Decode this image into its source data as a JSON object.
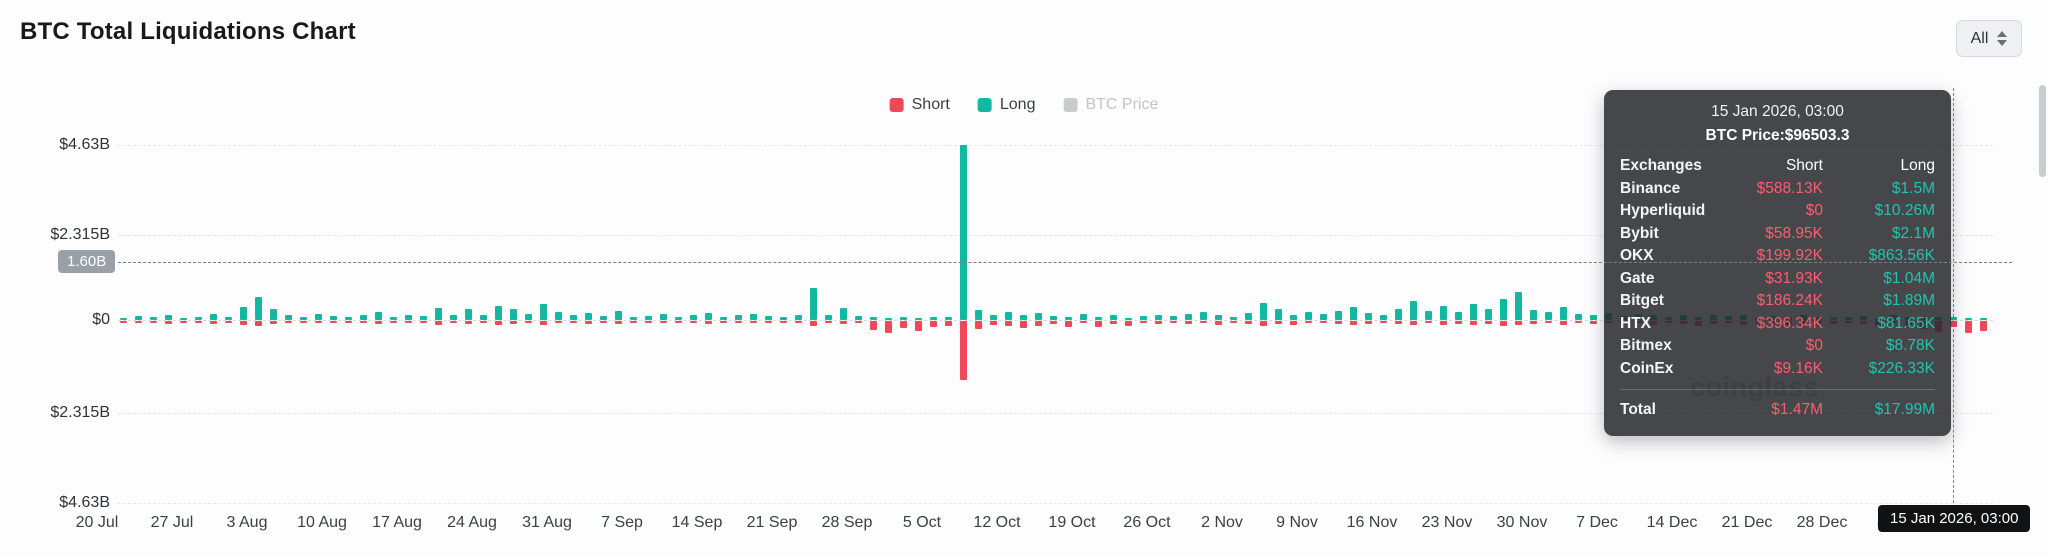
{
  "header": {
    "title": "BTC Total Liquidations Chart",
    "range_selector": "All"
  },
  "legend": [
    {
      "label": "Short",
      "color": "#ef4856",
      "active": true
    },
    {
      "label": "Long",
      "color": "#13b8a3",
      "active": true
    },
    {
      "label": "BTC Price",
      "color": "#c9cccf",
      "active": false
    }
  ],
  "y_axis": {
    "labels": [
      "$4.63B",
      "$2.315B",
      "$0",
      "$2.315B",
      "$4.63B"
    ],
    "hover_badge": "1.60B"
  },
  "x_axis": {
    "hover_badge": "15 Jan 2026, 03:00"
  },
  "watermark": "coinglass",
  "tooltip": {
    "date": "15 Jan 2026, 03:00",
    "btc_price": "BTC Price:$96503.3",
    "columns": [
      "Exchanges",
      "Short",
      "Long"
    ],
    "rows": [
      {
        "name": "Binance",
        "short": "$588.13K",
        "long": "$1.5M"
      },
      {
        "name": "Hyperliquid",
        "short": "$0",
        "long": "$10.26M"
      },
      {
        "name": "Bybit",
        "short": "$58.95K",
        "long": "$2.1M"
      },
      {
        "name": "OKX",
        "short": "$199.92K",
        "long": "$863.56K"
      },
      {
        "name": "Gate",
        "short": "$31.93K",
        "long": "$1.04M"
      },
      {
        "name": "Bitget",
        "short": "$186.24K",
        "long": "$1.89M"
      },
      {
        "name": "HTX",
        "short": "$396.34K",
        "long": "$81.65K"
      },
      {
        "name": "Bitmex",
        "short": "$0",
        "long": "$8.78K"
      },
      {
        "name": "CoinEx",
        "short": "$9.16K",
        "long": "$226.33K"
      }
    ],
    "total": {
      "name": "Total",
      "short": "$1.47M",
      "long": "$17.99M"
    },
    "colors": {
      "short_text": "#ff5d6e",
      "long_text": "#22c4ad"
    }
  },
  "chart_data": {
    "type": "bar",
    "title": "BTC Total Liquidations Chart",
    "xlabel": "Date",
    "ylabel": "Liquidations (USD, billions; Long up / Short down)",
    "ylim": [
      -4.63,
      4.63
    ],
    "y_tick_values_billions": [
      4.63,
      2.315,
      0,
      -2.315,
      -4.63
    ],
    "x_tick_labels": [
      "20 Jul",
      "27 Jul",
      "3 Aug",
      "10 Aug",
      "17 Aug",
      "24 Aug",
      "31 Aug",
      "7 Sep",
      "14 Sep",
      "21 Sep",
      "28 Sep",
      "5 Oct",
      "12 Oct",
      "19 Oct",
      "26 Oct",
      "2 Nov",
      "9 Nov",
      "16 Nov",
      "23 Nov",
      "30 Nov",
      "7 Dec",
      "14 Dec",
      "21 Dec",
      "28 Dec",
      "4 Jan"
    ],
    "legend_position": "top-center",
    "grid": "horizontal-dashed",
    "crosshair": {
      "x_label": "15 Jan 2026, 03:00",
      "y_label": "1.60B"
    },
    "hovered_point": {
      "date": "15 Jan 2026, 03:00",
      "btc_price": 96503.3,
      "short_total": "$1.47M",
      "long_total": "$17.99M"
    },
    "series": [
      {
        "name": "Long",
        "color": "#13b8a3",
        "direction": "up",
        "values_billions": [
          0.06,
          0.11,
          0.07,
          0.13,
          0.05,
          0.09,
          0.16,
          0.08,
          0.35,
          0.6,
          0.3,
          0.12,
          0.08,
          0.15,
          0.1,
          0.07,
          0.12,
          0.2,
          0.08,
          0.14,
          0.1,
          0.32,
          0.14,
          0.28,
          0.12,
          0.38,
          0.3,
          0.16,
          0.42,
          0.22,
          0.12,
          0.18,
          0.1,
          0.24,
          0.08,
          0.1,
          0.16,
          0.08,
          0.13,
          0.18,
          0.08,
          0.12,
          0.16,
          0.1,
          0.07,
          0.14,
          0.85,
          0.12,
          0.32,
          0.1,
          0.07,
          0.05,
          0.09,
          0.06,
          0.08,
          0.08,
          4.63,
          0.26,
          0.14,
          0.2,
          0.12,
          0.18,
          0.1,
          0.08,
          0.15,
          0.07,
          0.12,
          0.06,
          0.1,
          0.14,
          0.1,
          0.16,
          0.2,
          0.12,
          0.09,
          0.18,
          0.45,
          0.28,
          0.14,
          0.22,
          0.15,
          0.24,
          0.34,
          0.18,
          0.12,
          0.3,
          0.5,
          0.24,
          0.36,
          0.2,
          0.42,
          0.28,
          0.55,
          0.75,
          0.26,
          0.2,
          0.34,
          0.15,
          0.12,
          0.18,
          0.1,
          0.15,
          0.12,
          0.08,
          0.14,
          0.08,
          0.12,
          0.1,
          0.14,
          0.06,
          0.1,
          0.08,
          0.12,
          0.09,
          0.07,
          0.08,
          0.1,
          0.06,
          0.12,
          0.08,
          0.06,
          0.09,
          0.07,
          0.05,
          0.02
        ]
      },
      {
        "name": "Short",
        "color": "#ef4856",
        "direction": "down",
        "values_billions": [
          0.04,
          0.06,
          0.03,
          0.07,
          0.04,
          0.05,
          0.08,
          0.04,
          0.1,
          0.12,
          0.08,
          0.05,
          0.04,
          0.06,
          0.05,
          0.04,
          0.06,
          0.08,
          0.03,
          0.05,
          0.05,
          0.09,
          0.06,
          0.08,
          0.04,
          0.1,
          0.08,
          0.05,
          0.09,
          0.06,
          0.05,
          0.07,
          0.04,
          0.08,
          0.03,
          0.04,
          0.06,
          0.03,
          0.05,
          0.07,
          0.03,
          0.05,
          0.06,
          0.04,
          0.03,
          0.05,
          0.12,
          0.04,
          0.08,
          0.05,
          0.22,
          0.3,
          0.18,
          0.25,
          0.15,
          0.12,
          1.5,
          0.2,
          0.1,
          0.12,
          0.18,
          0.12,
          0.08,
          0.14,
          0.06,
          0.16,
          0.08,
          0.12,
          0.06,
          0.08,
          0.05,
          0.08,
          0.06,
          0.1,
          0.04,
          0.08,
          0.12,
          0.07,
          0.09,
          0.06,
          0.06,
          0.08,
          0.1,
          0.07,
          0.05,
          0.08,
          0.1,
          0.06,
          0.09,
          0.07,
          0.1,
          0.07,
          0.12,
          0.1,
          0.08,
          0.06,
          0.09,
          0.05,
          0.08,
          0.06,
          0.08,
          0.06,
          0.1,
          0.05,
          0.07,
          0.12,
          0.08,
          0.06,
          0.09,
          0.05,
          0.06,
          0.1,
          0.07,
          0.05,
          0.08,
          0.05,
          0.08,
          0.12,
          0.06,
          0.09,
          0.2,
          0.28,
          0.15,
          0.3,
          0.25
        ]
      }
    ]
  }
}
